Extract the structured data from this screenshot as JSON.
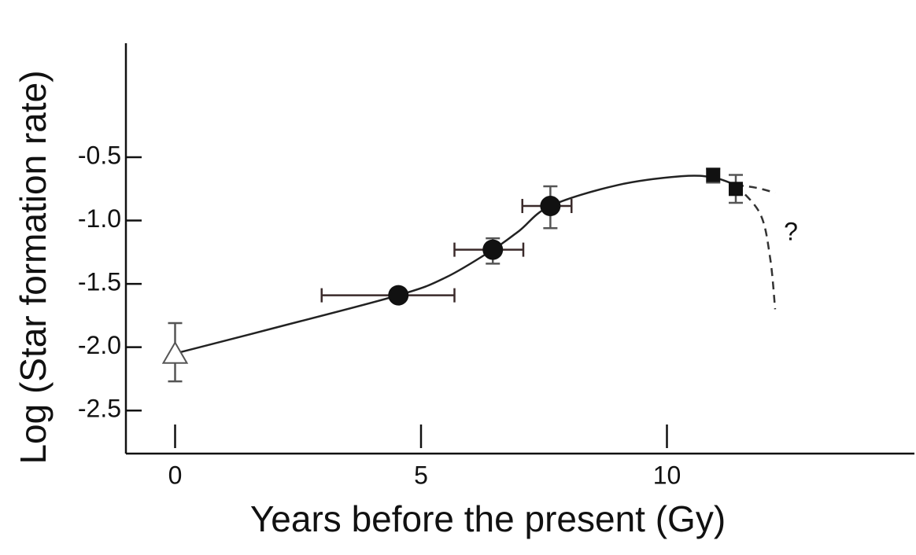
{
  "chart_data": {
    "type": "line",
    "x_label": "Years before the present (Gy)",
    "y_label": "Log (Star formation rate)",
    "xlim": [
      -1,
      15
    ],
    "ylim": [
      -2.84,
      0.4
    ],
    "xticks": [
      0,
      5,
      10
    ],
    "yticks": [
      -0.5,
      {
        "value": -1,
        "label": "-1.0"
      },
      -1.5,
      {
        "value": -2,
        "label": "-2.0"
      },
      -2.5
    ],
    "annotation": "?",
    "points": [
      {
        "marker": "triangle",
        "x": [
          0
        ],
        "values": [
          -2.05
        ],
        "x_low": [
          null
        ],
        "x_high": [
          null
        ],
        "y_low": [
          -2.27
        ],
        "y_high": [
          -1.81
        ]
      },
      {
        "marker": "circle",
        "x": [
          4.54,
          6.46,
          7.63
        ],
        "values": [
          -1.59,
          -1.23,
          -0.885
        ],
        "x_low": [
          2.98,
          5.68,
          7.06
        ],
        "x_high": [
          5.68,
          7.08,
          8.06
        ],
        "y_low": [
          null,
          -1.34,
          -1.06
        ],
        "y_high": [
          null,
          -1.14,
          -0.73
        ]
      },
      {
        "marker": "square",
        "x": [
          10.94,
          11.4
        ],
        "values": [
          -0.64,
          -0.75
        ],
        "x_low": [
          null,
          null
        ],
        "x_high": [
          null,
          null
        ],
        "y_low": [
          -0.7,
          -0.86
        ],
        "y_high": [
          -0.59,
          -0.64
        ]
      }
    ],
    "series": [
      {
        "color": "#222222",
        "dashed": false,
        "x": [
          0,
          2,
          4.54,
          5.5,
          6.46,
          7.0,
          7.63,
          9,
          10.3,
          10.94,
          11.4
        ],
        "values": [
          -2.05,
          -1.85,
          -1.59,
          -1.45,
          -1.23,
          -1.08,
          -0.885,
          -0.72,
          -0.65,
          -0.66,
          -0.72
        ]
      },
      {
        "color": "#333333",
        "dashed": true,
        "x": [
          11.4,
          11.8,
          12.2
        ],
        "values": [
          -0.72,
          -0.74,
          -0.78
        ]
      },
      {
        "color": "#333333",
        "dashed": true,
        "x": [
          11.4,
          11.9,
          12.1,
          12.2
        ],
        "values": [
          -0.72,
          -0.95,
          -1.3,
          -1.7
        ]
      }
    ]
  }
}
